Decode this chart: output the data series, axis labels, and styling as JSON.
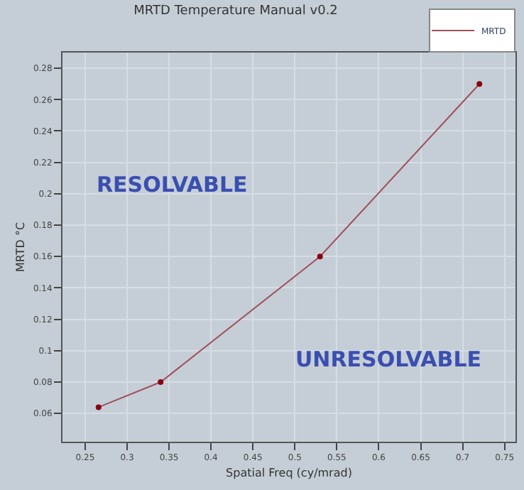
{
  "chart_data": {
    "type": "line",
    "title": "MRTD Temperature Manual v0.2",
    "xlabel": "Spatial Freq (cy/mrad)",
    "ylabel": "MRTD °C",
    "x": [
      0.266,
      0.34,
      0.53,
      0.72
    ],
    "series": [
      {
        "name": "MRTD",
        "color": "#a0505a",
        "values": [
          0.064,
          0.08,
          0.16,
          0.27
        ]
      }
    ],
    "xlim": [
      0.223,
      0.763
    ],
    "xticks": [
      0.25,
      0.3,
      0.35,
      0.4,
      0.45,
      0.5,
      0.55,
      0.6,
      0.65,
      0.7,
      0.75
    ],
    "ylim": [
      0.042,
      0.29
    ],
    "yticks": [
      0.06,
      0.08,
      0.1,
      0.12,
      0.14,
      0.16,
      0.18,
      0.2,
      0.22,
      0.24,
      0.26,
      0.28
    ],
    "annotations": [
      "RESOLVABLE",
      "UNRESOLVABLE"
    ],
    "grid": true,
    "legend": "top right",
    "marker": "circle",
    "line_style": "solid"
  }
}
